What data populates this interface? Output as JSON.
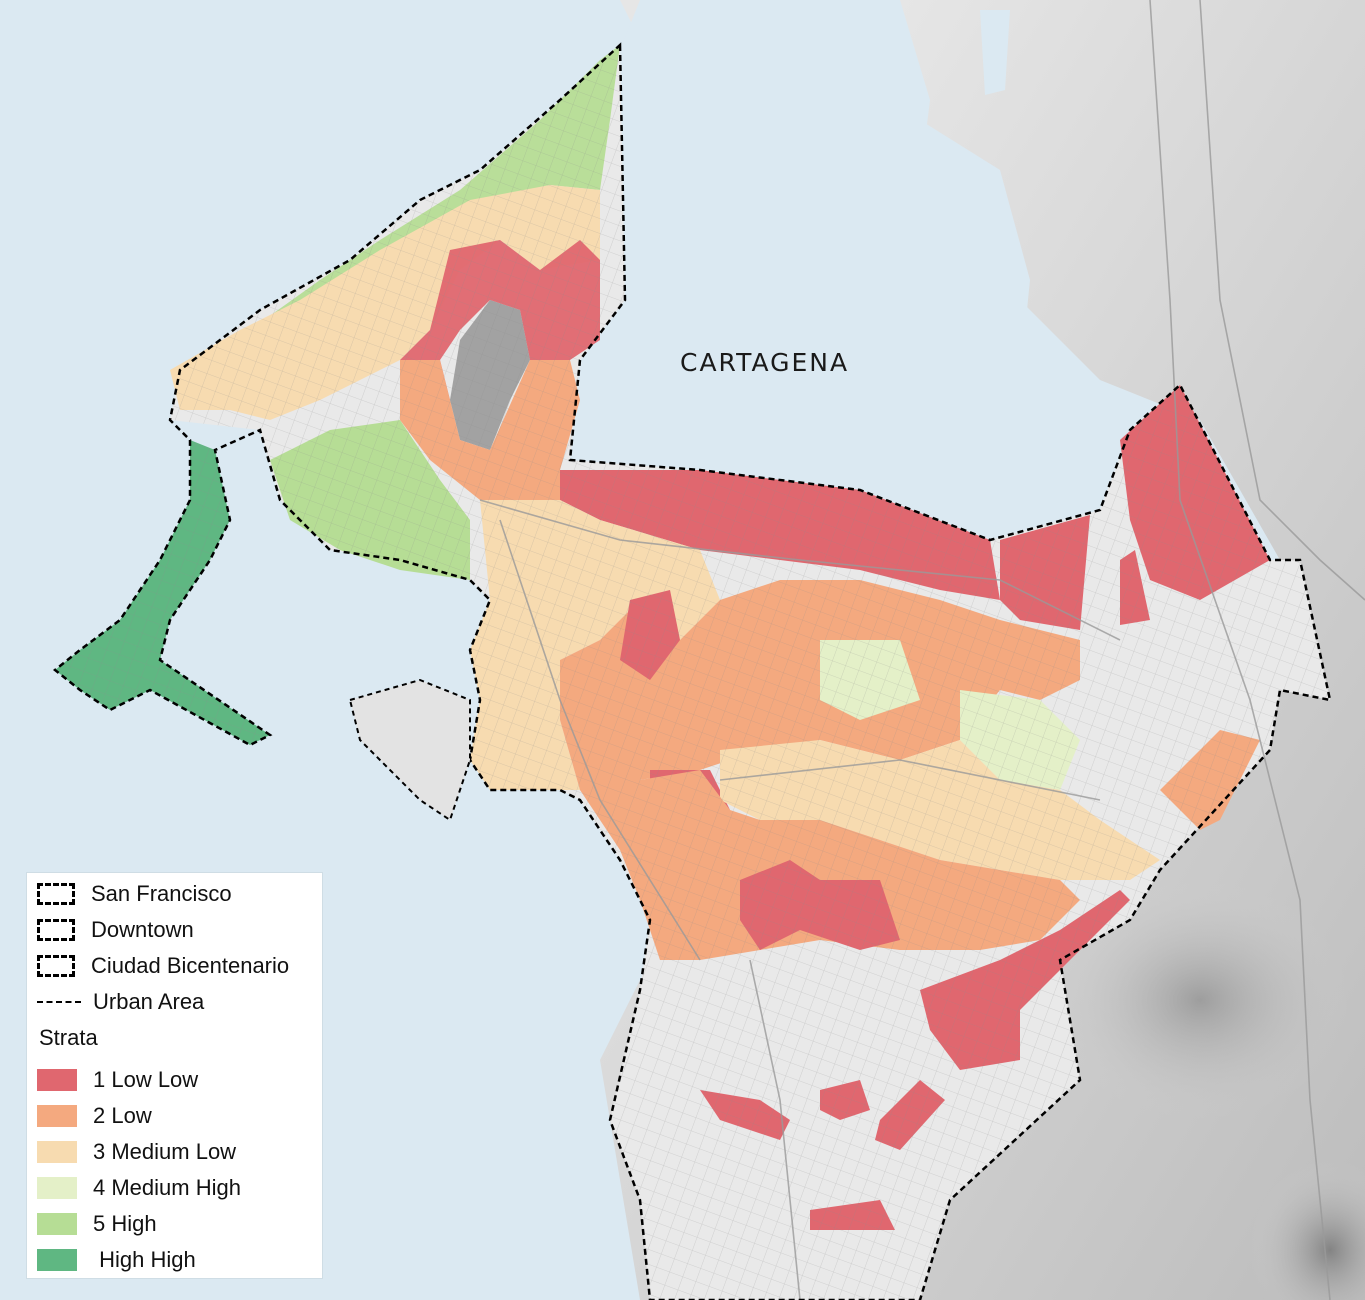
{
  "map": {
    "city_label": "CARTAGENA",
    "colors": {
      "water": "#dbe9f2",
      "land": "#e8e8e8",
      "strata_1": "#e0676f",
      "strata_2": "#f4a97f",
      "strata_3": "#f7dbb0",
      "strata_4": "#e4f0c8",
      "strata_5": "#b6dd95",
      "strata_6": "#5fb782",
      "roads": "#9a9a9a",
      "boundary": "#000000"
    }
  },
  "legend": {
    "boundaries": [
      {
        "label": "San Francisco",
        "style": "dashed-box"
      },
      {
        "label": "Downtown",
        "style": "dashed-box"
      },
      {
        "label": "Ciudad Bicentenario",
        "style": "dashed-box"
      },
      {
        "label": "Urban Area",
        "style": "dashed-line"
      }
    ],
    "strata_title": "Strata",
    "strata": [
      {
        "label": "1 Low Low",
        "color": "#e0676f"
      },
      {
        "label": "2 Low",
        "color": "#f4a97f"
      },
      {
        "label": "3 Medium Low",
        "color": "#f7dbb0"
      },
      {
        "label": "4 Medium High",
        "color": "#e4f0c8"
      },
      {
        "label": "5 High",
        "color": "#b6dd95"
      },
      {
        "label": " High High",
        "color": "#5fb782"
      }
    ]
  }
}
